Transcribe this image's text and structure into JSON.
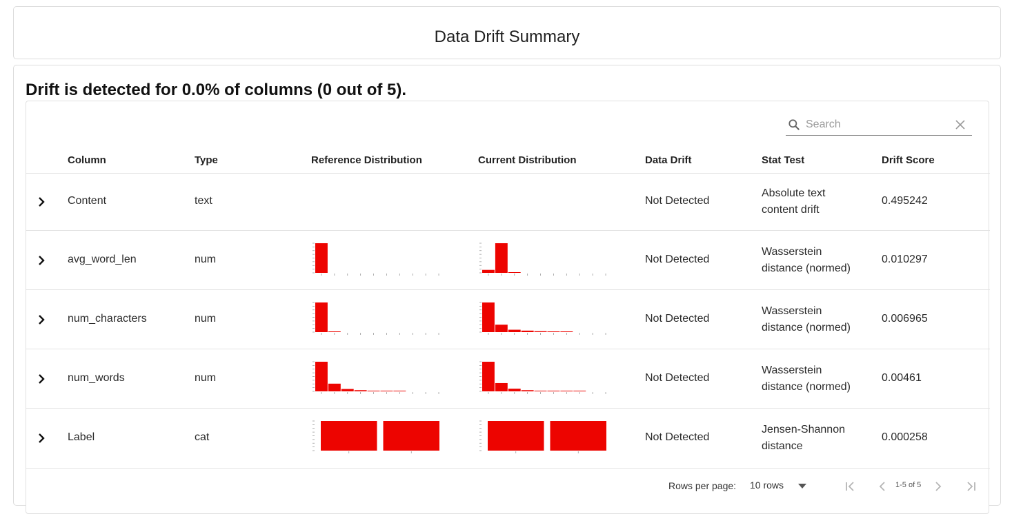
{
  "header": {
    "title": "Data Drift Summary"
  },
  "summary": {
    "text": "Drift is detected for 0.0% of columns (0 out of 5)."
  },
  "search": {
    "placeholder": "Search"
  },
  "table": {
    "columns": [
      "Column",
      "Type",
      "Reference Distribution",
      "Current Distribution",
      "Data Drift",
      "Stat Test",
      "Drift Score"
    ],
    "rows": [
      {
        "column": "Content",
        "type": "text",
        "drift": "Not Detected",
        "stat_line1": "Absolute text",
        "stat_line2": "content drift",
        "score": "0.495242",
        "ref_hist": [],
        "cur_hist": []
      },
      {
        "column": "avg_word_len",
        "type": "num",
        "drift": "Not Detected",
        "stat_line1": "Wasserstein",
        "stat_line2": "distance (normed)",
        "score": "0.010297",
        "ref_hist": [
          100,
          0,
          0,
          0,
          0,
          0,
          0,
          0,
          0,
          0
        ],
        "cur_hist": [
          10,
          100,
          2,
          0,
          0,
          0,
          0,
          0,
          0,
          0
        ]
      },
      {
        "column": "num_characters",
        "type": "num",
        "drift": "Not Detected",
        "stat_line1": "Wasserstein",
        "stat_line2": "distance (normed)",
        "score": "0.006965",
        "ref_hist": [
          100,
          2,
          0,
          0,
          0,
          0,
          0,
          0,
          0,
          0
        ],
        "cur_hist": [
          100,
          25,
          8,
          5,
          3,
          2,
          1,
          0,
          0,
          0
        ]
      },
      {
        "column": "num_words",
        "type": "num",
        "drift": "Not Detected",
        "stat_line1": "Wasserstein",
        "stat_line2": "distance (normed)",
        "score": "0.00461",
        "ref_hist": [
          100,
          26,
          8,
          4,
          2,
          1,
          1,
          0,
          0,
          0
        ],
        "cur_hist": [
          100,
          28,
          9,
          4,
          2,
          1,
          1,
          1,
          0,
          0
        ]
      },
      {
        "column": "Label",
        "type": "cat",
        "drift": "Not Detected",
        "stat_line1": "Jensen-Shannon",
        "stat_line2": "distance",
        "score": "0.000258",
        "ref_hist": [
          100,
          100
        ],
        "cur_hist": [
          100,
          100
        ]
      }
    ]
  },
  "footer": {
    "rows_per_page_label": "Rows per page:",
    "rows_per_page_value": "10 rows",
    "range": "1-5 of 5"
  },
  "colors": {
    "bar": "#ed0400",
    "accent": "#222222"
  },
  "icons": [
    "search-icon",
    "close-icon",
    "chevron-right-icon",
    "caret-down-icon",
    "first-page-icon",
    "prev-page-icon",
    "next-page-icon",
    "last-page-icon"
  ]
}
